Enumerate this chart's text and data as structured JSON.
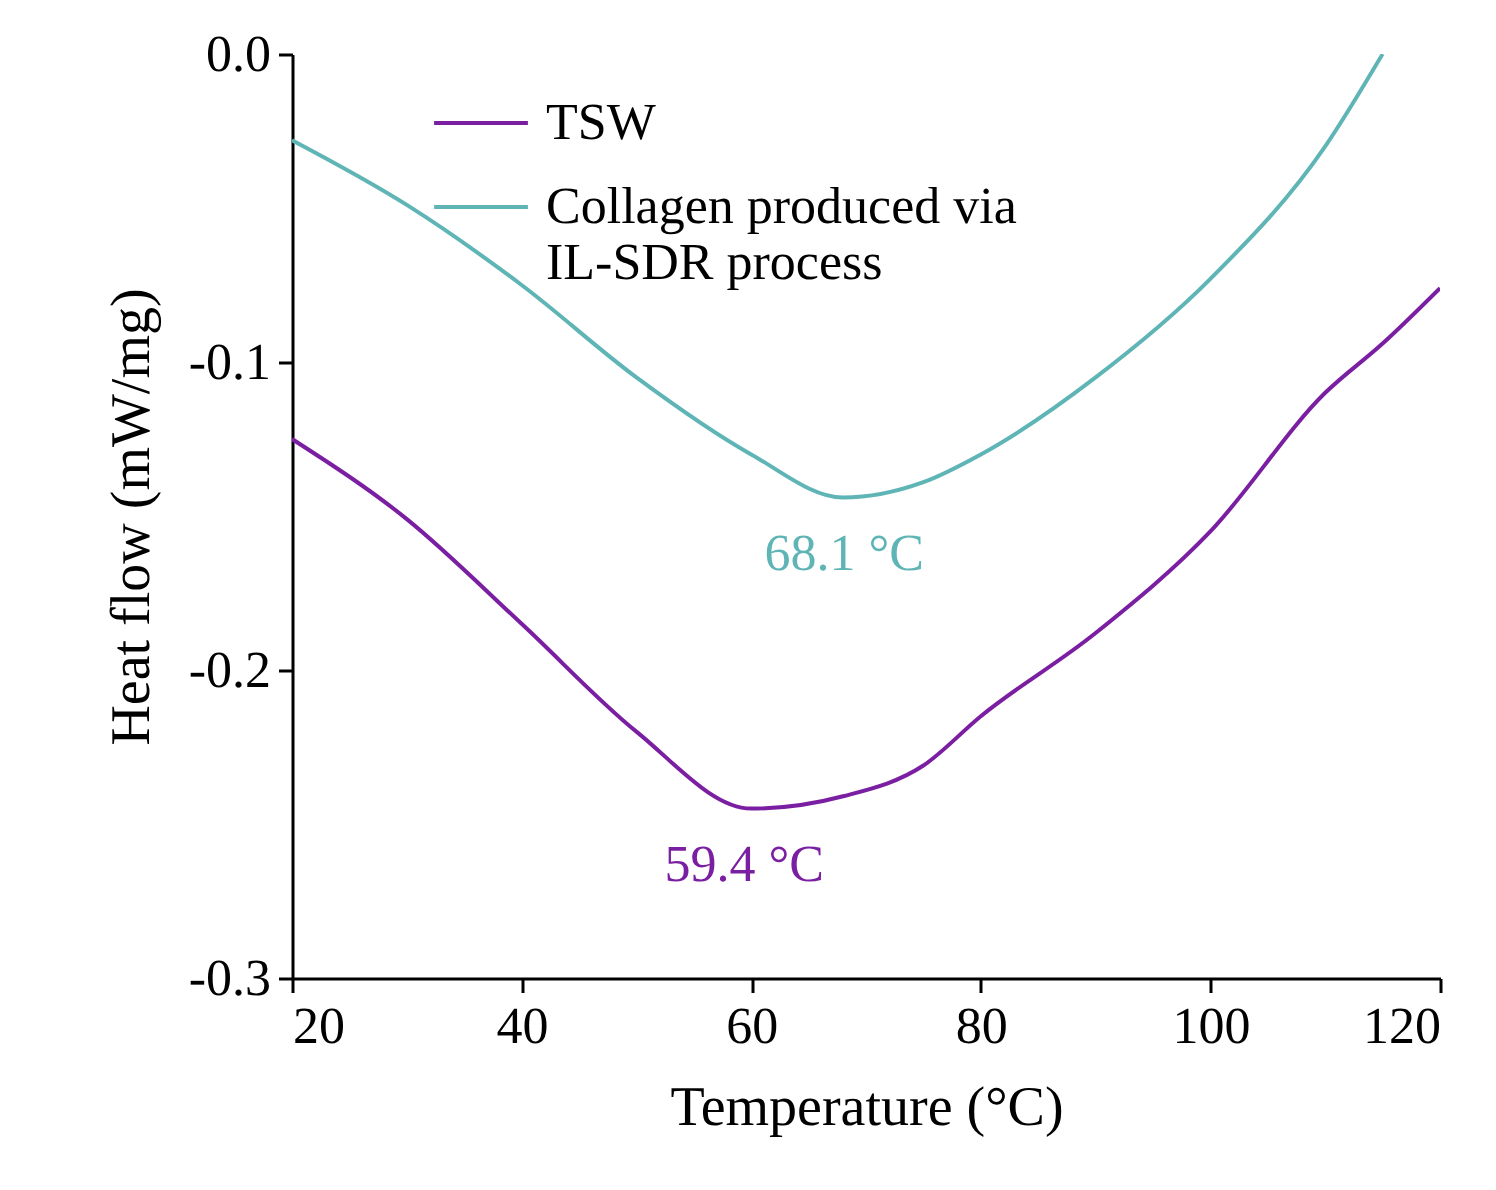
{
  "chart_data": {
    "type": "line",
    "xlabel": "Temperature (°C)",
    "ylabel": "Heat flow (mW/mg)",
    "xlim": [
      20,
      120
    ],
    "xticks": [
      20,
      40,
      60,
      80,
      100,
      120
    ],
    "ylim": [
      -0.3,
      0.0
    ],
    "yticks": [
      {
        "value": -0.3,
        "label": "-0.3"
      },
      {
        "value": -0.2,
        "label": "-0.2"
      },
      {
        "value": -0.1,
        "label": "-0.1"
      },
      {
        "value": 0.0,
        "label": "0.0"
      }
    ],
    "x": [
      20,
      30,
      40,
      50,
      60,
      68,
      75,
      80,
      90,
      100,
      110,
      115,
      120
    ],
    "series": [
      {
        "name": "TSW",
        "color": "#7b1fa2",
        "values": [
          -0.125,
          -0.151,
          -0.185,
          -0.22,
          -0.245,
          -0.241,
          -0.231,
          -0.215,
          -0.188,
          -0.155,
          -0.11,
          -0.094,
          -0.076
        ]
      },
      {
        "name": "Collagen produced via IL-SDR process",
        "color": "#5fb5b5",
        "values": [
          -0.028,
          -0.049,
          -0.075,
          -0.105,
          -0.13,
          -0.144,
          -0.139,
          -0.13,
          -0.105,
          -0.073,
          -0.03,
          0.0,
          null
        ]
      }
    ],
    "annotations": [
      {
        "text": "68.1 °C",
        "x": 68.1,
        "y": -0.144
      },
      {
        "text": "59.4 °C",
        "x": 59.4,
        "y": -0.245
      }
    ],
    "legend": "top left",
    "grid": false,
    "marker": "none",
    "line_style": "solid"
  }
}
